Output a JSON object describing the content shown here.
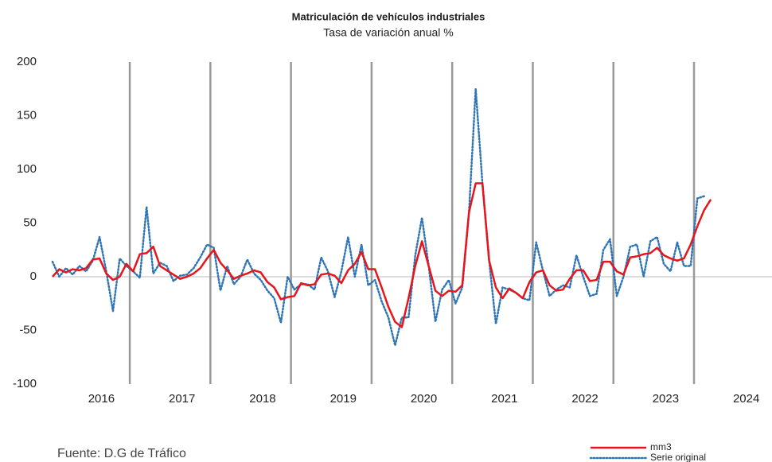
{
  "chart_data": {
    "type": "line",
    "title": "Matriculación de vehículos industriales",
    "subtitle": "Tasa de variación anual %",
    "source": "Fuente: D.G de Tráfico",
    "categories": [
      null,
      null,
      null,
      null,
      null,
      null,
      "2016",
      null,
      null,
      null,
      null,
      null,
      null,
      null,
      null,
      null,
      null,
      null,
      "2017",
      null,
      null,
      null,
      null,
      null,
      null,
      null,
      null,
      null,
      null,
      null,
      "2018",
      null,
      null,
      null,
      null,
      null,
      null,
      null,
      null,
      null,
      null,
      null,
      "2019",
      null,
      null,
      null,
      null,
      null,
      null,
      null,
      null,
      null,
      null,
      null,
      "2020",
      null,
      null,
      null,
      null,
      null,
      null,
      null,
      null,
      null,
      null,
      null,
      "2021",
      null,
      null,
      null,
      null,
      null,
      null,
      null,
      null,
      null,
      null,
      null,
      "2022",
      null,
      null,
      null,
      null,
      null,
      null,
      null,
      null,
      null,
      null,
      null,
      "2023",
      null,
      null,
      null,
      null,
      null,
      null,
      null,
      null,
      null,
      null,
      null,
      "2024",
      null,
      null,
      null,
      null,
      null
    ],
    "ylim": [
      -100,
      200
    ],
    "yticks": [
      -100,
      -50,
      0,
      50,
      100,
      150,
      200
    ],
    "grid": false,
    "legend": "bottom-right",
    "series": [
      {
        "name": "mm3",
        "color": "#e8141b",
        "style": "solid",
        "values": [
          0,
          7,
          4,
          7,
          6,
          8,
          16,
          17,
          3,
          -3,
          0,
          12,
          5,
          21,
          22,
          28,
          10,
          6,
          2,
          -2,
          0,
          3,
          8,
          17,
          25,
          13,
          6,
          -2,
          1,
          3,
          6,
          4,
          -5,
          -10,
          -21,
          -19,
          -18,
          -6,
          -8,
          -7,
          2,
          3,
          1,
          -6,
          6,
          12,
          23,
          7,
          7,
          -10,
          -28,
          -42,
          -47,
          -20,
          10,
          33,
          10,
          -13,
          -18,
          -13,
          -14,
          -8,
          60,
          87,
          87,
          15,
          -10,
          -20,
          -11,
          -15,
          -20,
          -5,
          4,
          6,
          -8,
          -13,
          -12,
          -2,
          6,
          6,
          -4,
          -3,
          14,
          14,
          5,
          2,
          18,
          19,
          21,
          22,
          27,
          20,
          17,
          15,
          17,
          30,
          47,
          62,
          72,
          null,
          null,
          null,
          null,
          null,
          null,
          null,
          null,
          null
        ]
      },
      {
        "name": "Serie original",
        "color": "#2e75b6",
        "style": "dotted",
        "values": [
          14,
          0,
          8,
          2,
          10,
          5,
          15,
          37,
          5,
          -32,
          17,
          10,
          5,
          -1,
          65,
          3,
          13,
          10,
          -4,
          1,
          2,
          8,
          18,
          30,
          27,
          -13,
          10,
          -7,
          0,
          16,
          3,
          -3,
          -13,
          -20,
          -43,
          0,
          -12,
          -7,
          -7,
          -12,
          18,
          5,
          -19,
          5,
          37,
          0,
          30,
          -8,
          -3,
          -23,
          -38,
          -64,
          -38,
          -38,
          20,
          55,
          10,
          -42,
          -12,
          -3,
          -25,
          -10,
          60,
          175,
          87,
          15,
          -44,
          -10,
          -12,
          -15,
          -20,
          -22,
          32,
          6,
          -18,
          -12,
          -8,
          -10,
          20,
          0,
          -18,
          -16,
          25,
          35,
          -18,
          0,
          28,
          30,
          0,
          33,
          37,
          12,
          5,
          32,
          10,
          10,
          73,
          75,
          null,
          null,
          null,
          null,
          null,
          null,
          null,
          null,
          null,
          null
        ]
      }
    ]
  }
}
